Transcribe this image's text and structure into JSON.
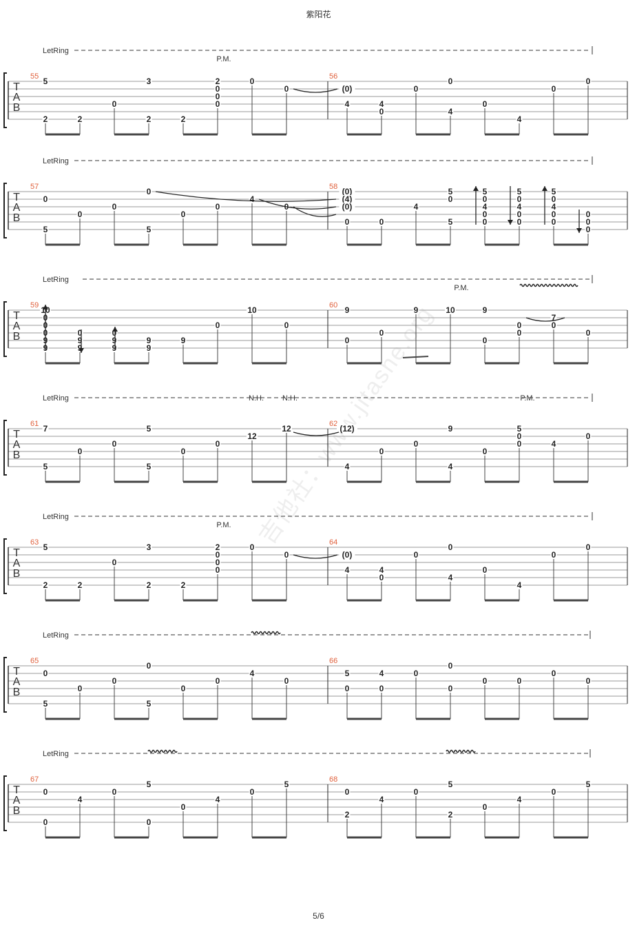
{
  "page": {
    "title": "紫阳花",
    "page_number": "5/6",
    "watermark": "吉他社：www.jitashe.org"
  },
  "tab_clef": [
    "T",
    "A",
    "B"
  ],
  "systems": [
    {
      "letring": "LetRing",
      "bar_numbers": [
        "55",
        "56"
      ],
      "annotations": [
        "P.M."
      ],
      "notes": [
        [
          "5",
          "2"
        ],
        [
          "2"
        ],
        [
          "0"
        ],
        [
          "3",
          "2"
        ],
        [
          "2"
        ],
        [
          "2",
          "0",
          "0",
          "0"
        ],
        [
          "0"
        ],
        [
          "0"
        ],
        [
          "(0)",
          "4"
        ],
        [
          "4",
          "0"
        ],
        [
          "0"
        ],
        [
          "0",
          "4"
        ],
        [
          "0"
        ],
        [
          "4"
        ],
        [
          "0"
        ],
        [
          "0"
        ]
      ]
    },
    {
      "letring": "LetRing",
      "bar_numbers": [
        "57",
        "58"
      ],
      "annotations": [],
      "notes": [
        [
          "0",
          "5"
        ],
        [
          "0"
        ],
        [
          "0"
        ],
        [
          "0",
          "5"
        ],
        [
          "0"
        ],
        [
          "0"
        ],
        [
          "4"
        ],
        [
          "0"
        ],
        [
          "(0)",
          "(4)",
          "(0)",
          "0"
        ],
        [
          "0"
        ],
        [
          "4"
        ],
        [
          "5",
          "0",
          "5"
        ],
        [
          "5",
          "0",
          "4",
          "0",
          "0"
        ],
        [
          "5",
          "0",
          "4",
          "0",
          "0"
        ],
        [
          "5",
          "0",
          "4",
          "0",
          "0"
        ],
        [
          "0",
          "0",
          "0"
        ]
      ]
    },
    {
      "letring": "LetRing",
      "bar_numbers": [
        "59",
        "60"
      ],
      "annotations": [
        "P.M."
      ],
      "notes": [
        [
          "10",
          "0",
          "0",
          "0",
          "9",
          "9"
        ],
        [
          "0",
          "9",
          "9"
        ],
        [
          "0",
          "9",
          "9"
        ],
        [
          "9",
          "9"
        ],
        [
          "9"
        ],
        [
          "0"
        ],
        [
          "10"
        ],
        [
          "0"
        ],
        [
          "9",
          "0"
        ],
        [
          "0"
        ],
        [
          "9"
        ],
        [
          "10"
        ],
        [
          "9",
          "0"
        ],
        [
          "0",
          "0"
        ],
        [
          "7",
          "0"
        ],
        [
          "0"
        ]
      ]
    },
    {
      "letring": "LetRing",
      "bar_numbers": [
        "61",
        "62"
      ],
      "annotations": [
        "N.H.",
        "N.H.",
        "P.M."
      ],
      "notes": [
        [
          "7",
          "5"
        ],
        [
          "0"
        ],
        [
          "0"
        ],
        [
          "5",
          "5"
        ],
        [
          "0"
        ],
        [
          "0"
        ],
        [
          "12"
        ],
        [
          "12"
        ],
        [
          "(12)",
          "4"
        ],
        [
          "0"
        ],
        [
          "0"
        ],
        [
          "9",
          "4"
        ],
        [
          "0"
        ],
        [
          "5",
          "0",
          "0"
        ],
        [
          "4"
        ],
        [
          "0"
        ]
      ]
    },
    {
      "letring": "LetRing",
      "bar_numbers": [
        "63",
        "64"
      ],
      "annotations": [
        "P.M."
      ],
      "notes": [
        [
          "5",
          "2"
        ],
        [
          "2"
        ],
        [
          "0"
        ],
        [
          "3",
          "2"
        ],
        [
          "2"
        ],
        [
          "2",
          "0",
          "0",
          "0"
        ],
        [
          "0"
        ],
        [
          "0"
        ],
        [
          "(0)",
          "4"
        ],
        [
          "4",
          "0"
        ],
        [
          "0"
        ],
        [
          "0",
          "4"
        ],
        [
          "0"
        ],
        [
          "4"
        ],
        [
          "0"
        ],
        [
          "0"
        ]
      ]
    },
    {
      "letring": "LetRing",
      "bar_numbers": [
        "65",
        "66"
      ],
      "annotations": [],
      "notes": [
        [
          "0",
          "5"
        ],
        [
          "0"
        ],
        [
          "0"
        ],
        [
          "0",
          "5"
        ],
        [
          "0"
        ],
        [
          "0"
        ],
        [
          "4"
        ],
        [
          "0"
        ],
        [
          "5",
          "0"
        ],
        [
          "4",
          "0"
        ],
        [
          "0"
        ],
        [
          "0",
          "0"
        ],
        [
          "0"
        ],
        [
          "0"
        ],
        [
          "0"
        ],
        [
          "0"
        ]
      ]
    },
    {
      "letring": "LetRing",
      "bar_numbers": [
        "67",
        "68"
      ],
      "annotations": [],
      "notes": [
        [
          "0",
          "0"
        ],
        [
          "4"
        ],
        [
          "0"
        ],
        [
          "5",
          "0"
        ],
        [
          "0"
        ],
        [
          "4"
        ],
        [
          "0"
        ],
        [
          "5"
        ],
        [
          "0",
          "2"
        ],
        [
          "4"
        ],
        [
          "0"
        ],
        [
          "5",
          "2"
        ],
        [
          "0"
        ],
        [
          "4"
        ],
        [
          "0"
        ],
        [
          "5"
        ]
      ]
    }
  ]
}
